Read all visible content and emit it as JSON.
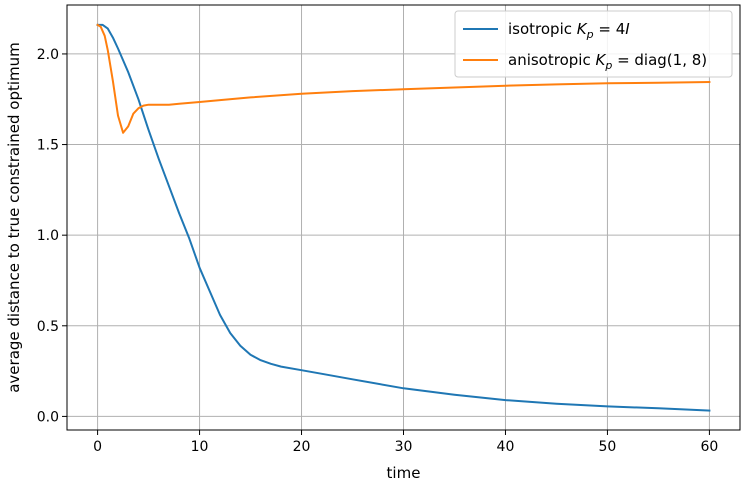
{
  "chart_data": {
    "type": "line",
    "xlabel": "time",
    "ylabel": "average distance to true constrained optimum",
    "xlim": [
      -3,
      63
    ],
    "ylim": [
      -0.075,
      2.27
    ],
    "xticks": [
      0,
      10,
      20,
      30,
      40,
      50,
      60
    ],
    "yticks": [
      0.0,
      0.5,
      1.0,
      1.5,
      2.0
    ],
    "xtick_labels": [
      "0",
      "10",
      "20",
      "30",
      "40",
      "50",
      "60"
    ],
    "ytick_labels": [
      "0.0",
      "0.5",
      "1.0",
      "1.5",
      "2.0"
    ],
    "grid": true,
    "legend_position": "top-right",
    "series": [
      {
        "name_parts": [
          "isotropic ",
          "K",
          "p",
          " = 4",
          "I"
        ],
        "color": "#1f77b4",
        "points": [
          [
            0,
            2.16
          ],
          [
            0.5,
            2.16
          ],
          [
            1,
            2.14
          ],
          [
            1.5,
            2.09
          ],
          [
            2,
            2.03
          ],
          [
            3,
            1.9
          ],
          [
            4,
            1.75
          ],
          [
            5,
            1.58
          ],
          [
            6,
            1.42
          ],
          [
            7,
            1.27
          ],
          [
            8,
            1.12
          ],
          [
            9,
            0.98
          ],
          [
            10,
            0.82
          ],
          [
            11,
            0.69
          ],
          [
            12,
            0.56
          ],
          [
            13,
            0.46
          ],
          [
            14,
            0.39
          ],
          [
            15,
            0.34
          ],
          [
            16,
            0.31
          ],
          [
            17,
            0.29
          ],
          [
            18,
            0.275
          ],
          [
            20,
            0.255
          ],
          [
            22,
            0.235
          ],
          [
            25,
            0.205
          ],
          [
            30,
            0.155
          ],
          [
            35,
            0.12
          ],
          [
            40,
            0.09
          ],
          [
            45,
            0.07
          ],
          [
            50,
            0.055
          ],
          [
            55,
            0.045
          ],
          [
            60,
            0.032
          ]
        ]
      },
      {
        "name_parts": [
          "anisotropic ",
          "K",
          "p",
          " = diag(1, 8)"
        ],
        "color": "#ff7f0e",
        "points": [
          [
            0,
            2.16
          ],
          [
            0.3,
            2.15
          ],
          [
            0.7,
            2.1
          ],
          [
            1,
            2.02
          ],
          [
            1.5,
            1.85
          ],
          [
            2,
            1.66
          ],
          [
            2.5,
            1.565
          ],
          [
            3,
            1.6
          ],
          [
            3.5,
            1.67
          ],
          [
            4,
            1.7
          ],
          [
            4.5,
            1.715
          ],
          [
            5,
            1.72
          ],
          [
            6,
            1.72
          ],
          [
            7,
            1.72
          ],
          [
            8,
            1.725
          ],
          [
            10,
            1.735
          ],
          [
            12,
            1.745
          ],
          [
            15,
            1.76
          ],
          [
            20,
            1.78
          ],
          [
            25,
            1.795
          ],
          [
            30,
            1.805
          ],
          [
            35,
            1.815
          ],
          [
            40,
            1.825
          ],
          [
            45,
            1.832
          ],
          [
            50,
            1.838
          ],
          [
            55,
            1.841
          ],
          [
            60,
            1.845
          ]
        ]
      }
    ]
  }
}
